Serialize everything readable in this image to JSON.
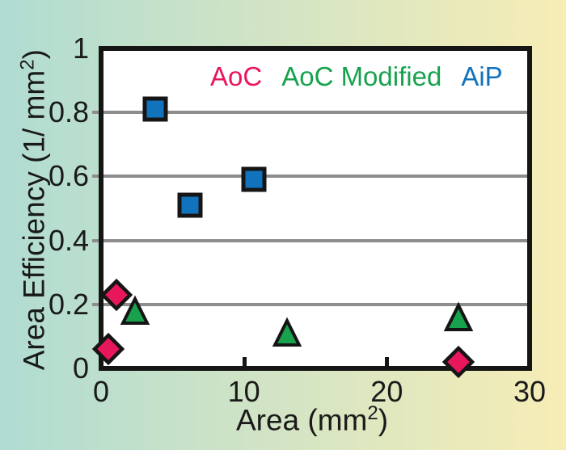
{
  "page": {
    "bg_gradient_left": "#b0dcd2",
    "bg_gradient_right": "#f7edb6",
    "plot_background": "#ffffff",
    "border_color": "#151515",
    "gridline_color": "#8d8d8d",
    "text_color": "#1a1a1a"
  },
  "axes": {
    "x_label": {
      "prefix": "Area (mm",
      "sup": "2",
      "suffix": ")"
    },
    "y_label": {
      "prefix": "Area Efficiency (1/ mm",
      "sup": "2",
      "suffix": ")"
    }
  },
  "chart_data": {
    "type": "scatter",
    "title": "",
    "xlabel": "Area (mm2)",
    "ylabel": "Area Efficiency (1/ mm2)",
    "xlim": [
      0,
      30
    ],
    "ylim": [
      0,
      1
    ],
    "grid": "horizontal gray lines at 0.2 intervals, small outward y-ticks, inward x-ticks",
    "legend_position": "top inside plot, single row",
    "x_ticks": [
      {
        "value": 0,
        "label": "0"
      },
      {
        "value": 10,
        "label": "10"
      },
      {
        "value": 20,
        "label": "20"
      },
      {
        "value": 30,
        "label": "30"
      }
    ],
    "y_ticks": [
      {
        "value": 0,
        "label": "0"
      },
      {
        "value": 0.2,
        "label": "0.2"
      },
      {
        "value": 0.4,
        "label": "0.4"
      },
      {
        "value": 0.6,
        "label": "0.6"
      },
      {
        "value": 0.8,
        "label": "0.8"
      },
      {
        "value": 1,
        "label": "1"
      }
    ],
    "y_gridlines": [
      0.2,
      0.4,
      0.6,
      0.8
    ],
    "x_inner_ticks": [
      10,
      20
    ],
    "series": [
      {
        "name": "AoC",
        "marker": "diamond",
        "color": "#e8175c",
        "points": [
          [
            0.5,
            0.06
          ],
          [
            1.1,
            0.23
          ],
          [
            25,
            0.02
          ]
        ]
      },
      {
        "name": "AoC Modified",
        "marker": "triangle",
        "color": "#18a24e",
        "points": [
          [
            2.4,
            0.18
          ],
          [
            13,
            0.11
          ],
          [
            25,
            0.16
          ]
        ]
      },
      {
        "name": "AiP",
        "marker": "square",
        "color": "#1273bd",
        "points": [
          [
            3.8,
            0.81
          ],
          [
            6.2,
            0.51
          ],
          [
            10.7,
            0.59
          ]
        ]
      }
    ]
  }
}
